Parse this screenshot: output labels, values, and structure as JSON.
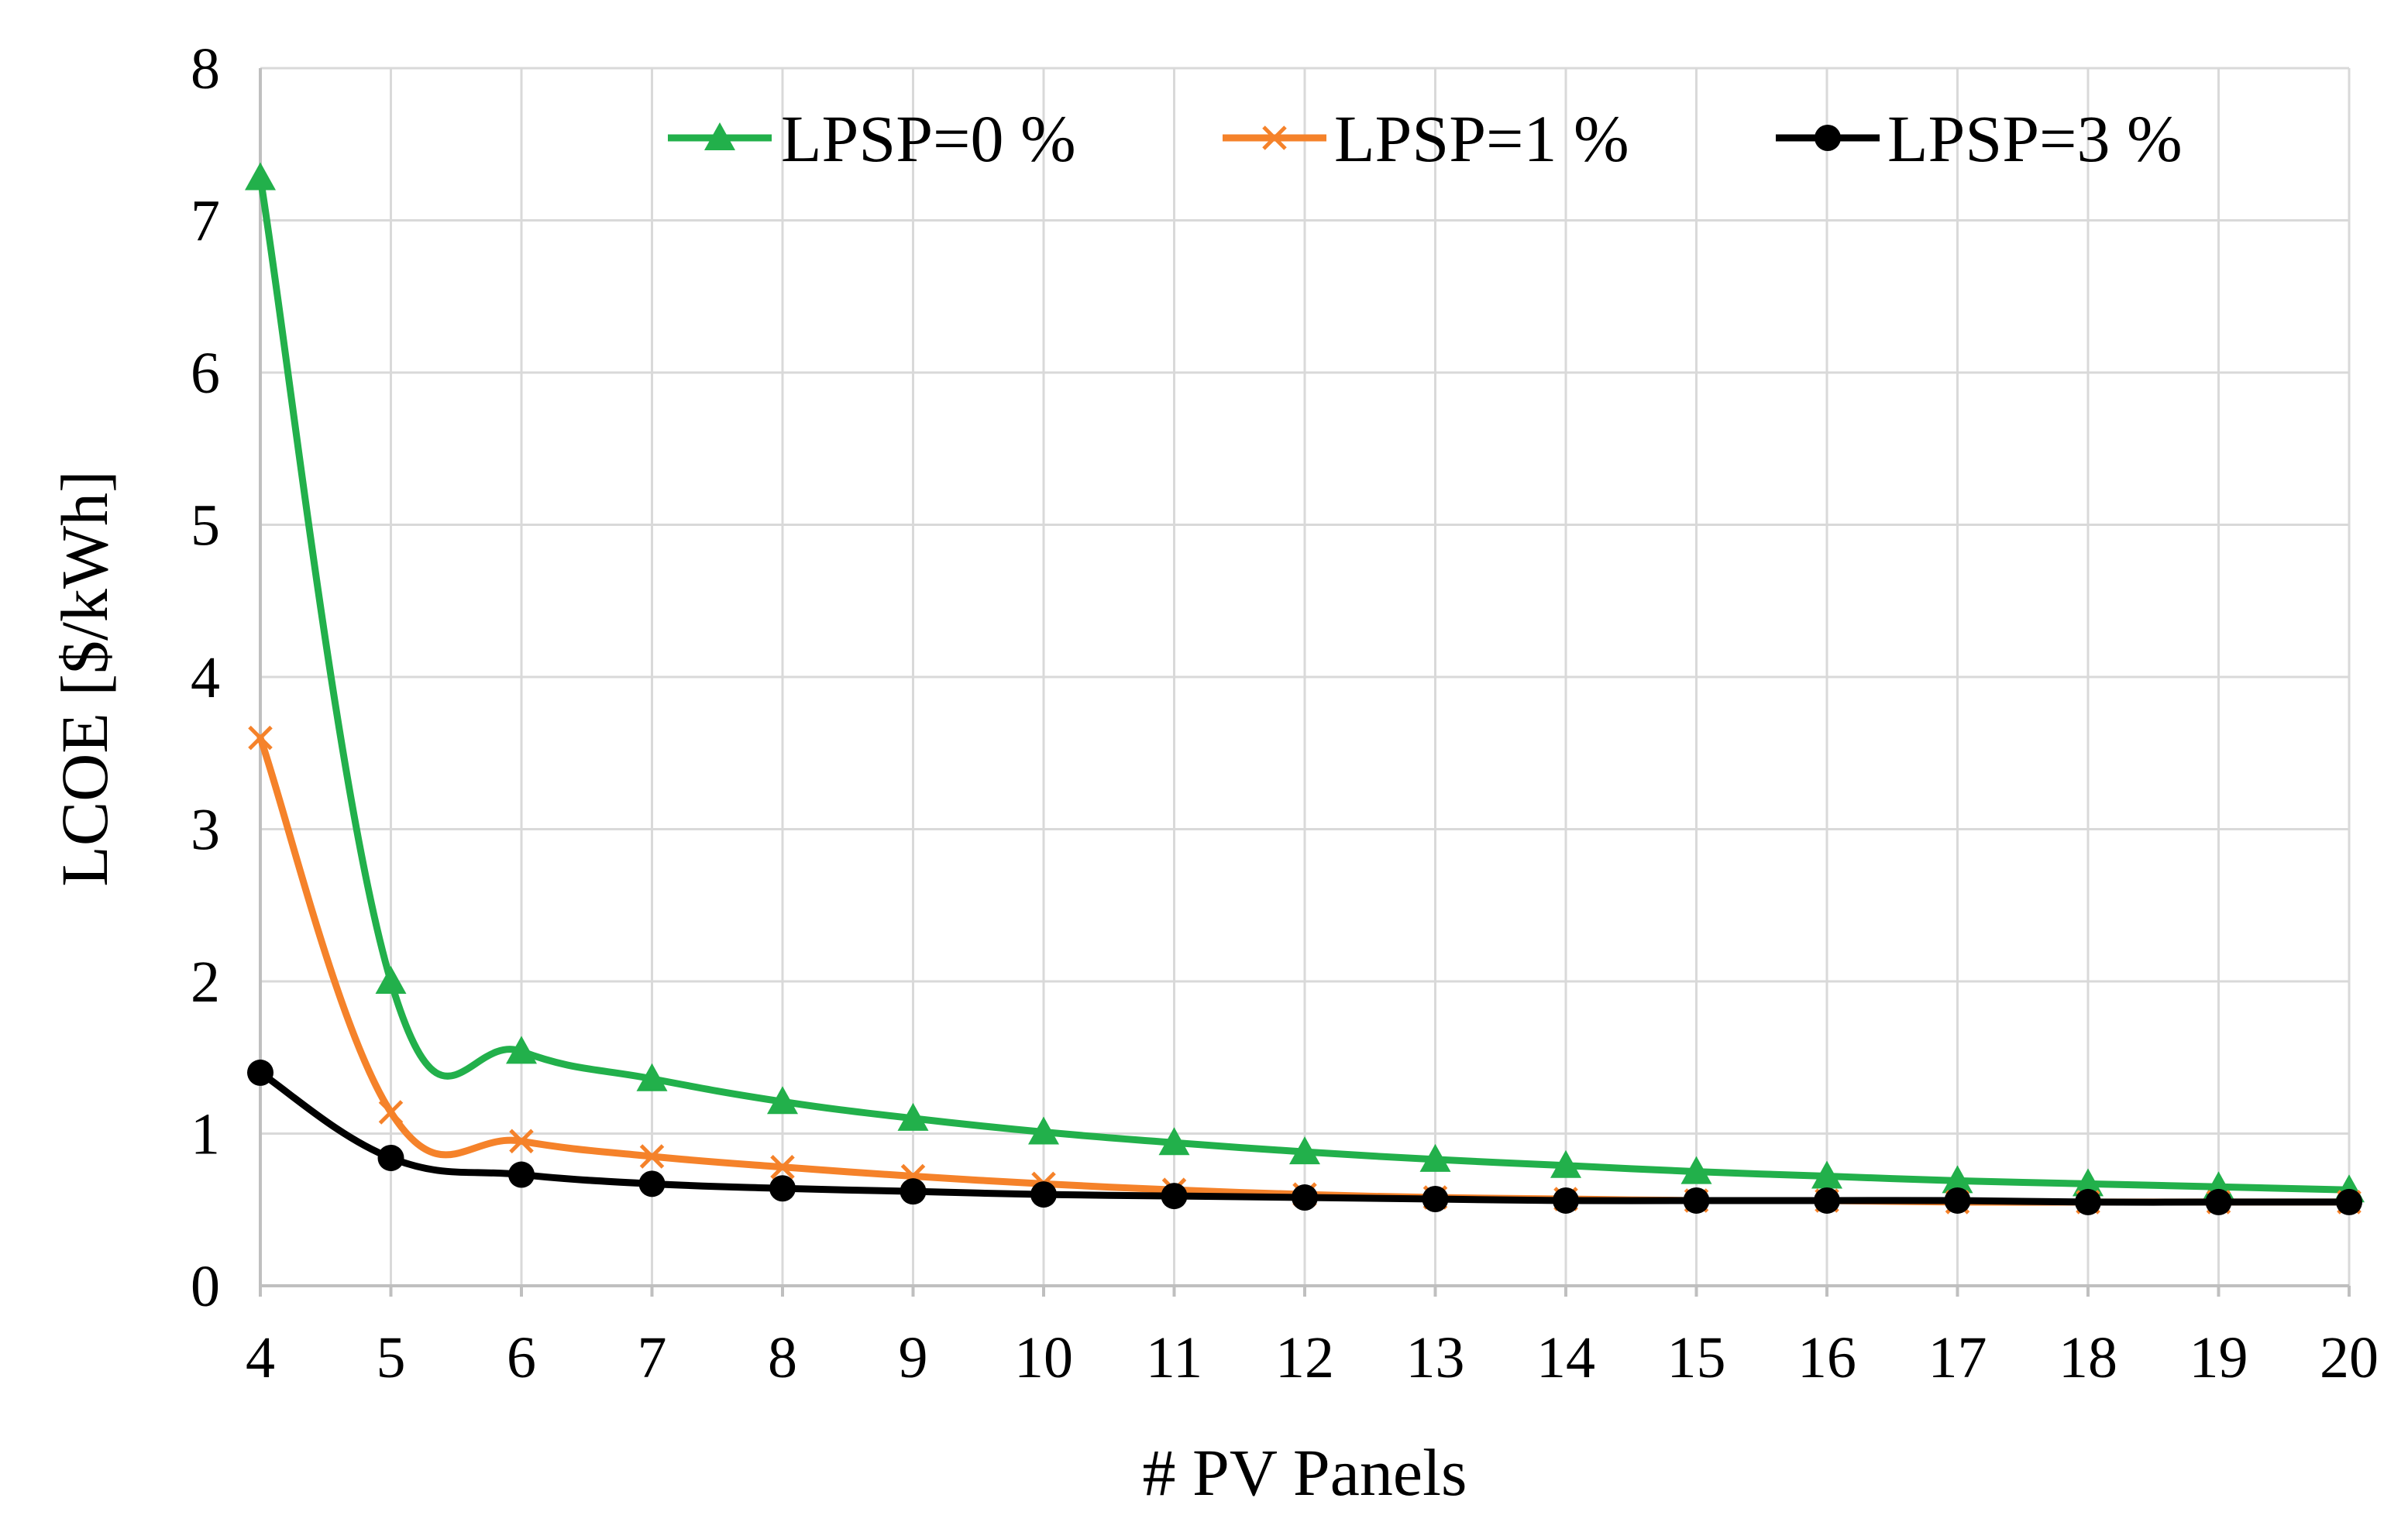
{
  "chart_data": {
    "type": "line",
    "title": "",
    "xlabel": "# PV Panels",
    "ylabel": "LCOE [$/kWh]",
    "x": [
      4,
      5,
      6,
      7,
      8,
      9,
      10,
      11,
      12,
      13,
      14,
      15,
      16,
      17,
      18,
      19,
      20
    ],
    "ylim": [
      0,
      8
    ],
    "yticks": [
      0,
      1,
      2,
      3,
      4,
      5,
      6,
      7,
      8
    ],
    "grid": true,
    "legend_position": "top",
    "series": [
      {
        "name": "LPSP=0 %",
        "color": "#22b04b",
        "marker": "triangle",
        "values": [
          7.28,
          2.0,
          1.54,
          1.36,
          1.21,
          1.1,
          1.01,
          0.94,
          0.88,
          0.83,
          0.79,
          0.75,
          0.72,
          0.69,
          0.67,
          0.65,
          0.63
        ]
      },
      {
        "name": "LPSP=1 %",
        "color": "#f5822a",
        "marker": "x",
        "values": [
          3.6,
          1.14,
          0.95,
          0.85,
          0.78,
          0.72,
          0.67,
          0.63,
          0.6,
          0.58,
          0.57,
          0.56,
          0.56,
          0.55,
          0.55,
          0.55,
          0.55
        ]
      },
      {
        "name": "LPSP=3 %",
        "color": "#000000",
        "marker": "circle",
        "values": [
          1.4,
          0.84,
          0.73,
          0.67,
          0.64,
          0.62,
          0.6,
          0.59,
          0.58,
          0.57,
          0.56,
          0.56,
          0.56,
          0.56,
          0.55,
          0.55,
          0.55
        ]
      }
    ]
  }
}
